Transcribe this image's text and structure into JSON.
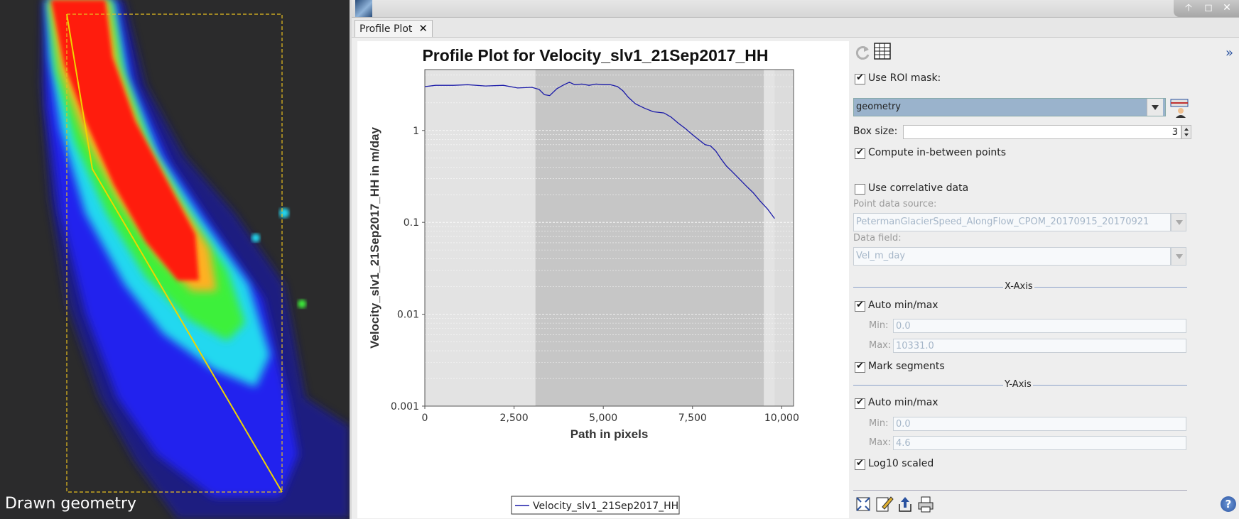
{
  "image_panel": {
    "caption": "Drawn geometry"
  },
  "window": {
    "tab_label": "Profile Plot",
    "tab_close": "✕",
    "controls": [
      "🡡",
      "◻",
      "✕"
    ]
  },
  "chart_data": {
    "type": "line",
    "title": "Profile Plot for Velocity_slv1_21Sep2017_HH",
    "xlabel": "Path in pixels",
    "ylabel": "Velocity_slv1_21Sep2017_HH in m/day",
    "xlim": [
      0,
      10331
    ],
    "ylim": [
      0.001,
      4.6
    ],
    "y_scale": "log",
    "x_ticks": [
      0,
      2500,
      5000,
      7500,
      10000
    ],
    "x_tick_labels": [
      "0",
      "2,500",
      "5,000",
      "7,500",
      "10,000"
    ],
    "y_ticks": [
      0.001,
      0.01,
      0.1,
      1
    ],
    "y_tick_labels": [
      "0.001",
      "0.01",
      "0.1",
      "1"
    ],
    "segments": [
      [
        0,
        3100
      ],
      [
        3100,
        9500
      ],
      [
        9500,
        9800
      ]
    ],
    "legend": "bottom",
    "series": [
      {
        "name": "Velocity_slv1_21Sep2017_HH",
        "color": "#1a1aa8",
        "x": [
          0,
          300,
          800,
          1200,
          1700,
          2200,
          2600,
          3000,
          3200,
          3350,
          3500,
          3700,
          3900,
          4050,
          4200,
          4400,
          4600,
          4800,
          5000,
          5200,
          5400,
          5550,
          5700,
          5900,
          6150,
          6400,
          6700,
          6900,
          7100,
          7300,
          7500,
          7700,
          7850,
          8000,
          8150,
          8300,
          8450,
          8600,
          8800,
          9000,
          9200,
          9400,
          9600,
          9800
        ],
        "y": [
          3.0,
          3.1,
          3.1,
          3.15,
          3.05,
          3.1,
          2.9,
          2.95,
          2.8,
          2.45,
          2.4,
          2.85,
          3.15,
          3.35,
          3.15,
          3.2,
          3.1,
          3.2,
          3.15,
          3.15,
          3.0,
          2.7,
          2.3,
          1.95,
          1.75,
          1.6,
          1.55,
          1.4,
          1.2,
          1.05,
          0.9,
          0.78,
          0.7,
          0.68,
          0.6,
          0.49,
          0.41,
          0.36,
          0.3,
          0.25,
          0.21,
          0.17,
          0.14,
          0.11
        ]
      }
    ]
  },
  "settings": {
    "use_roi_mask": {
      "label": "Use ROI mask:",
      "checked": true
    },
    "roi_mask_value": "geometry",
    "box_size": {
      "label": "Box size:",
      "value": "3"
    },
    "compute_between": {
      "label": "Compute in-between points",
      "checked": true
    },
    "use_correlative": {
      "label": "Use correlative data",
      "checked": false
    },
    "point_source": {
      "label": "Point data source:",
      "value": "PetermanGlacierSpeed_AlongFlow_CPOM_20170915_20170921"
    },
    "data_field": {
      "label": "Data field:",
      "value": "Vel_m_day"
    },
    "x_axis": {
      "title": "X-Axis",
      "auto_label": "Auto min/max",
      "auto_checked": true,
      "min_label": "Min:",
      "min_value": "0.0",
      "max_label": "Max:",
      "max_value": "10331.0",
      "mark_segments_label": "Mark segments",
      "mark_segments_checked": true
    },
    "y_axis": {
      "title": "Y-Axis",
      "auto_label": "Auto min/max",
      "auto_checked": true,
      "min_label": "Min:",
      "min_value": "0.0",
      "max_label": "Max:",
      "max_value": "4.6",
      "log_label": "Log10 scaled",
      "log_checked": true
    },
    "expand_glyph": "»",
    "help_glyph": "?"
  }
}
